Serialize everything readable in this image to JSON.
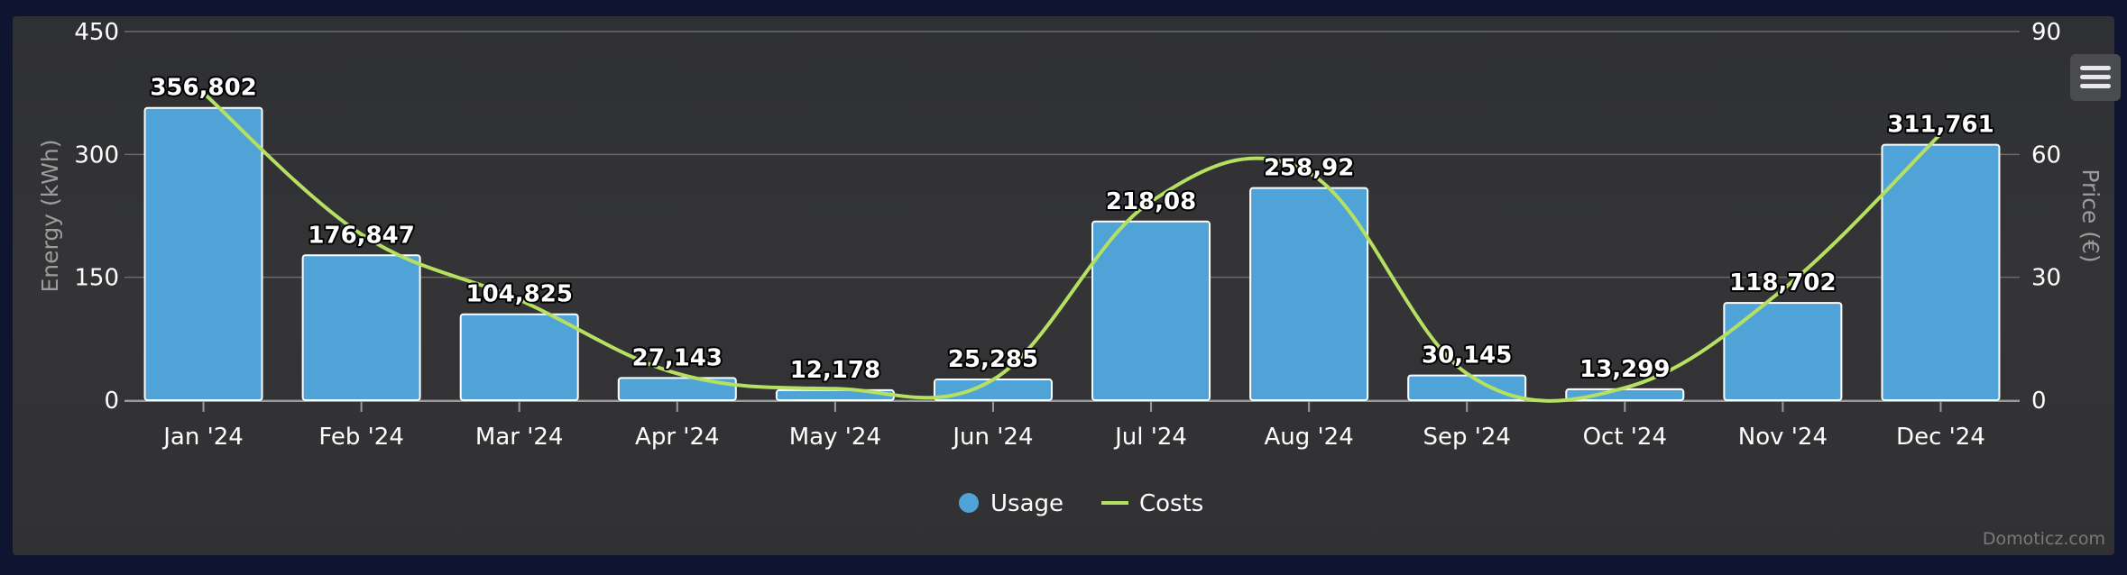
{
  "chart_data": {
    "type": "bar",
    "categories": [
      "Jan '24",
      "Feb '24",
      "Mar '24",
      "Apr '24",
      "May '24",
      "Jun '24",
      "Jul '24",
      "Aug '24",
      "Sep '24",
      "Oct '24",
      "Nov '24",
      "Dec '24"
    ],
    "series": [
      {
        "name": "Usage",
        "type": "bar",
        "axis": "left",
        "color": "#4fa3d6",
        "values": [
          356.802,
          176.847,
          104.825,
          27.143,
          12.178,
          25.285,
          218.08,
          258.92,
          30.145,
          13.299,
          118.702,
          311.761
        ],
        "data_labels": [
          "356,802",
          "176,847",
          "104,825",
          "27,143",
          "12,178",
          "25,285",
          "218,08",
          "258,92",
          "30,145",
          "13,299",
          "118,702",
          "311,761"
        ]
      },
      {
        "name": "Costs",
        "type": "line",
        "axis": "right",
        "color": "#b5e061",
        "values": [
          75.0,
          40.5,
          24.5,
          6.5,
          2.8,
          5.0,
          48.5,
          55.5,
          6.5,
          3.0,
          27.0,
          65.0
        ]
      }
    ],
    "y_left": {
      "label": "Energy (kWh)",
      "ylim": [
        0,
        450
      ],
      "ticks": [
        "0",
        "150",
        "300",
        "450"
      ]
    },
    "y_right": {
      "label": "Price (€)",
      "ylim": [
        0,
        90
      ],
      "ticks": [
        "0",
        "30",
        "60",
        "90"
      ]
    },
    "grid": true,
    "legend_position": "bottom-center"
  },
  "credits": "Domoticz.com"
}
